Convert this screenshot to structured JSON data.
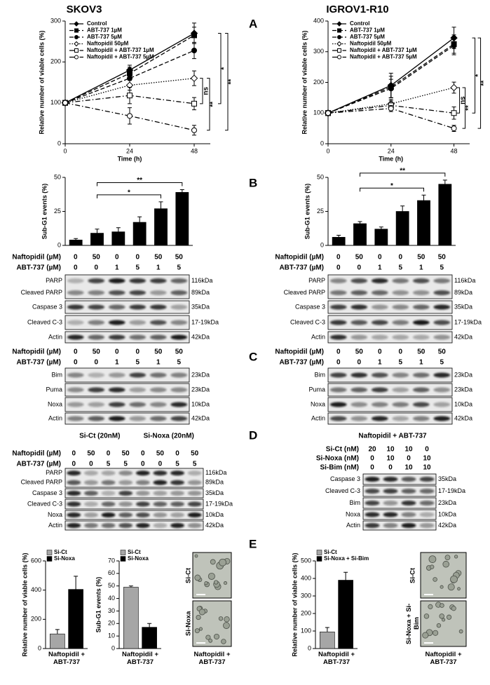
{
  "chart_data": [
    {
      "type": "line",
      "title": "SKOV3",
      "xlabel": "Time (h)",
      "ylabel": "Relative number of viable cells (%)",
      "x": [
        0,
        24,
        48
      ],
      "xlim": [
        0,
        54
      ],
      "xticks": [
        0,
        24,
        48
      ],
      "ylim": [
        0,
        300
      ],
      "yticks": [
        0,
        100,
        200,
        300
      ],
      "series": [
        {
          "name": "Control",
          "color": "#000000",
          "dash": "solid",
          "marker": "diamond",
          "filled": true,
          "values": [
            100,
            180,
            270
          ],
          "errors": [
            5,
            12,
            25
          ]
        },
        {
          "name": "ABT-737 1µM",
          "color": "#000000",
          "dash": "dashed",
          "marker": "square",
          "filled": true,
          "values": [
            100,
            172,
            265
          ],
          "errors": [
            5,
            15,
            20
          ]
        },
        {
          "name": "ABT-737 5µM",
          "color": "#000000",
          "dash": "dashed",
          "marker": "circle",
          "filled": true,
          "values": [
            100,
            160,
            228
          ],
          "errors": [
            5,
            15,
            20
          ]
        },
        {
          "name": "Naftopidil 50µM",
          "color": "#000000",
          "dash": "dotted",
          "marker": "diamond",
          "filled": false,
          "values": [
            100,
            143,
            160
          ],
          "errors": [
            5,
            12,
            18
          ]
        },
        {
          "name": "Naftopidil + ABT-737 1µM",
          "color": "#000000",
          "dash": "dashdot",
          "marker": "square",
          "filled": false,
          "values": [
            100,
            118,
            98
          ],
          "errors": [
            5,
            20,
            15
          ]
        },
        {
          "name": "Naftopidil + ABT-737 5µM",
          "color": "#000000",
          "dash": "dashdot",
          "marker": "circle",
          "filled": false,
          "values": [
            100,
            68,
            33
          ],
          "errors": [
            5,
            20,
            12
          ]
        }
      ],
      "annotations": [
        "ns",
        "**",
        "*",
        "**"
      ]
    },
    {
      "type": "line",
      "title": "IGROV1-R10",
      "xlabel": "Time (h)",
      "ylabel": "Relative number of viable cells (%)",
      "x": [
        0,
        24,
        48
      ],
      "xlim": [
        0,
        54
      ],
      "xticks": [
        0,
        24,
        48
      ],
      "ylim": [
        0,
        400
      ],
      "yticks": [
        0,
        100,
        200,
        300,
        400
      ],
      "series": [
        {
          "name": "Control",
          "color": "#000000",
          "dash": "solid",
          "marker": "diamond",
          "filled": true,
          "values": [
            100,
            190,
            345
          ],
          "errors": [
            5,
            40,
            35
          ]
        },
        {
          "name": "ABT-737 1µM",
          "color": "#000000",
          "dash": "dashed",
          "marker": "square",
          "filled": true,
          "values": [
            100,
            185,
            325
          ],
          "errors": [
            5,
            35,
            30
          ]
        },
        {
          "name": "ABT-737 5µM",
          "color": "#000000",
          "dash": "dashed",
          "marker": "circle",
          "filled": true,
          "values": [
            100,
            180,
            320
          ],
          "errors": [
            5,
            30,
            30
          ]
        },
        {
          "name": "Naftopidil 50µM",
          "color": "#000000",
          "dash": "dotted",
          "marker": "diamond",
          "filled": false,
          "values": [
            100,
            130,
            183
          ],
          "errors": [
            5,
            15,
            18
          ]
        },
        {
          "name": "Naftopidil + ABT-737 1µM",
          "color": "#000000",
          "dash": "dashdot",
          "marker": "square",
          "filled": false,
          "values": [
            100,
            125,
            100
          ],
          "errors": [
            5,
            15,
            20
          ]
        },
        {
          "name": "Naftopidil + ABT-737 5µM",
          "color": "#000000",
          "dash": "dashdot",
          "marker": "circle",
          "filled": false,
          "values": [
            100,
            115,
            50
          ],
          "errors": [
            5,
            10,
            10
          ]
        }
      ],
      "annotations": [
        "ns",
        "**",
        "*",
        "**"
      ]
    },
    {
      "type": "bar",
      "ylabel": "Sub-G1 events (%)",
      "values": [
        4,
        9,
        10,
        17,
        27,
        39
      ],
      "errors": [
        1,
        3,
        3,
        4,
        5,
        2
      ],
      "color": "#000000",
      "ylim": [
        0,
        50
      ],
      "yticks": [
        0,
        25,
        50
      ],
      "annotations": [
        "*",
        "**"
      ]
    },
    {
      "type": "bar",
      "ylabel": "Sub-G1 events (%)",
      "values": [
        6,
        16,
        12,
        25,
        33,
        45
      ],
      "errors": [
        1.5,
        1.5,
        1.5,
        4,
        4,
        3
      ],
      "color": "#000000",
      "ylim": [
        0,
        50
      ],
      "yticks": [
        0,
        25,
        50
      ],
      "annotations": [
        "*",
        "**"
      ]
    },
    {
      "type": "bar",
      "ylabel": "Relative number of viable cells (%)",
      "categories": [
        "Naftopidil + ABT-737"
      ],
      "series": [
        {
          "name": "Si-Ct",
          "color": "#a6a6a6",
          "values": [
            100
          ],
          "errors": [
            30
          ]
        },
        {
          "name": "Si-Noxa",
          "color": "#000000",
          "values": [
            405
          ],
          "errors": [
            90
          ]
        }
      ],
      "ylim": [
        0,
        600
      ],
      "yticks": [
        0,
        200,
        400,
        600
      ]
    },
    {
      "type": "bar",
      "ylabel": "Sub-G1 events (%)",
      "categories": [
        "Naftopidil + ABT-737"
      ],
      "series": [
        {
          "name": "Si-Ct",
          "color": "#a6a6a6",
          "values": [
            49
          ],
          "errors": [
            1
          ]
        },
        {
          "name": "Si-Noxa",
          "color": "#000000",
          "values": [
            17
          ],
          "errors": [
            3
          ]
        }
      ],
      "ylim": [
        0,
        70
      ],
      "yticks": [
        0,
        10,
        20,
        30,
        40,
        50,
        60,
        70
      ]
    },
    {
      "type": "bar",
      "ylabel": "Relative number of viable cells (%)",
      "categories": [
        "Naftopidil + ABT-737"
      ],
      "series": [
        {
          "name": "Si-Ct",
          "color": "#a6a6a6",
          "values": [
            95
          ],
          "errors": [
            25
          ]
        },
        {
          "name": "Si-Noxa + Si-Bim",
          "color": "#000000",
          "values": [
            390
          ],
          "errors": [
            45
          ]
        }
      ],
      "ylim": [
        0,
        500
      ],
      "yticks": [
        0,
        100,
        200,
        300,
        400,
        500
      ]
    }
  ],
  "panel_labels": [
    "A",
    "B",
    "C",
    "D",
    "E"
  ],
  "blots": [
    {
      "rows": [
        {
          "label": "Naftopidil (µM)",
          "values": [
            0,
            50,
            0,
            0,
            50,
            50
          ]
        },
        {
          "label": "ABT-737 (µM)",
          "values": [
            0,
            0,
            1,
            5,
            1,
            5
          ]
        }
      ],
      "bands": [
        {
          "labels": [
            "PARP",
            "Cleaved PARP"
          ],
          "sizes": [
            "116kDa",
            "89kDa"
          ]
        },
        {
          "labels": [
            "Caspase 3"
          ],
          "sizes": [
            "35kDa"
          ]
        },
        {
          "labels": [
            "Cleaved C-3"
          ],
          "sizes": [
            "17-19kDa"
          ]
        },
        {
          "labels": [
            "Actin"
          ],
          "sizes": [
            "42kDa"
          ]
        }
      ]
    },
    {
      "rows": [
        {
          "label": "Naftopidil (µM)",
          "values": [
            0,
            50,
            0,
            0,
            50,
            50
          ]
        },
        {
          "label": "ABT-737 (µM)",
          "values": [
            0,
            0,
            1,
            5,
            1,
            5
          ]
        }
      ],
      "bands": [
        {
          "labels": [
            "PARP",
            "Cleaved PARP"
          ],
          "sizes": [
            "116kDa",
            "89kDa"
          ]
        },
        {
          "labels": [
            "Caspase 3"
          ],
          "sizes": [
            "35kDa"
          ]
        },
        {
          "labels": [
            "Cleaved C-3"
          ],
          "sizes": [
            "17-19kDa"
          ]
        },
        {
          "labels": [
            "Actin"
          ],
          "sizes": [
            "42kDa"
          ]
        }
      ]
    },
    {
      "rows": [
        {
          "label": "Naftopidil (µM)",
          "values": [
            0,
            50,
            0,
            0,
            50,
            50
          ]
        },
        {
          "label": "ABT-737 (µM)",
          "values": [
            0,
            0,
            1,
            5,
            1,
            5
          ]
        }
      ],
      "bands": [
        {
          "labels": [
            "Bim"
          ],
          "sizes": [
            "23kDa"
          ]
        },
        {
          "labels": [
            "Puma"
          ],
          "sizes": [
            "23kDa"
          ]
        },
        {
          "labels": [
            "Noxa"
          ],
          "sizes": [
            "10kDa"
          ]
        },
        {
          "labels": [
            "Actin"
          ],
          "sizes": [
            "42kDa"
          ]
        }
      ]
    },
    {
      "rows": [
        {
          "label": "Naftopidil (µM)",
          "values": [
            0,
            50,
            0,
            0,
            50,
            50
          ]
        },
        {
          "label": "ABT-737 (µM)",
          "values": [
            0,
            0,
            1,
            5,
            1,
            5
          ]
        }
      ],
      "bands": [
        {
          "labels": [
            "Bim"
          ],
          "sizes": [
            "23kDa"
          ]
        },
        {
          "labels": [
            "Puma"
          ],
          "sizes": [
            "23kDa"
          ]
        },
        {
          "labels": [
            "Noxa"
          ],
          "sizes": [
            "10kDa"
          ]
        },
        {
          "labels": [
            "Actin"
          ],
          "sizes": [
            "42kDa"
          ]
        }
      ]
    },
    {
      "groups": [
        "Si-Ct (20nM)",
        "Si-Noxa (20nM)"
      ],
      "rows": [
        {
          "label": "Naftopidil (µM)",
          "values": [
            0,
            50,
            0,
            50,
            0,
            50,
            0,
            50
          ]
        },
        {
          "label": "ABT-737 (µM)",
          "values": [
            0,
            0,
            5,
            5,
            0,
            0,
            5,
            5
          ]
        }
      ],
      "bands": [
        {
          "labels": [
            "PARP",
            "Cleaved PARP"
          ],
          "sizes": [
            "116kDa",
            "89kDa"
          ]
        },
        {
          "labels": [
            "Caspase 3"
          ],
          "sizes": [
            "35kDa"
          ]
        },
        {
          "labels": [
            "Cleaved C-3"
          ],
          "sizes": [
            "17-19kDa"
          ]
        },
        {
          "labels": [
            "Noxa"
          ],
          "sizes": [
            "10kDa"
          ]
        },
        {
          "labels": [
            "Actin"
          ],
          "sizes": [
            "42kDa"
          ]
        }
      ]
    },
    {
      "header": "Naftopidil + ABT-737",
      "rows": [
        {
          "label": "Si-Ct (nM)",
          "values": [
            20,
            10,
            10,
            0
          ]
        },
        {
          "label": "Si-Noxa (nM)",
          "values": [
            0,
            10,
            0,
            10
          ]
        },
        {
          "label": "Si-Bim (nM)",
          "values": [
            0,
            0,
            10,
            10
          ]
        }
      ],
      "bands": [
        {
          "labels": [
            "Caspase 3"
          ],
          "sizes": [
            "35kDa"
          ]
        },
        {
          "labels": [
            "Cleaved  C-3"
          ],
          "sizes": [
            "17-19kDa"
          ]
        },
        {
          "labels": [
            "Bim"
          ],
          "sizes": [
            "23kDa"
          ]
        },
        {
          "labels": [
            "Noxa"
          ],
          "sizes": [
            "10kDa"
          ]
        },
        {
          "labels": [
            "Actin"
          ],
          "sizes": [
            "42kDa"
          ]
        }
      ]
    }
  ],
  "micrographs": [
    {
      "labels": [
        "Si-Ct",
        "Si-Noxa"
      ],
      "caption": "Naftopidil + ABT-737"
    },
    {
      "labels": [
        "Si-Ct",
        "Si-Noxa + Si-Bim"
      ],
      "caption": "Naftopidil + ABT-737"
    }
  ]
}
